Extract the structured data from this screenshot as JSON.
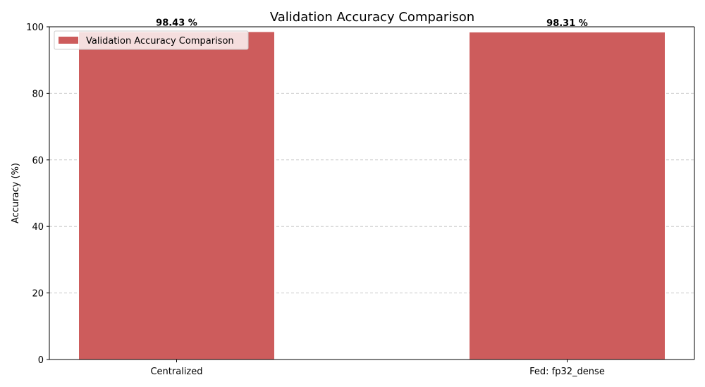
{
  "chart_data": {
    "type": "bar",
    "title": "Validation Accuracy Comparison",
    "xlabel": "",
    "ylabel": "Accuracy (%)",
    "categories": [
      "Centralized",
      "Fed: fp32_dense"
    ],
    "series": [
      {
        "name": "Validation Accuracy Comparison",
        "values": [
          98.43,
          98.31
        ]
      }
    ],
    "data_labels": [
      "98.43 %",
      "98.31 %"
    ],
    "ylim": [
      0,
      100
    ],
    "yticks": [
      0,
      20,
      40,
      60,
      80,
      100
    ],
    "grid": "y dashed",
    "legend_position": "top-left",
    "colors": {
      "bar": "#cd5c5c",
      "grid": "#cccccc",
      "axis": "#000000"
    }
  }
}
